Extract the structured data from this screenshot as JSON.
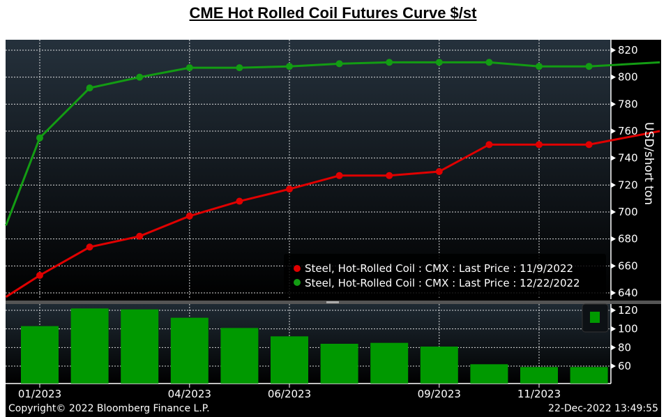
{
  "title": "CME Hot Rolled Coil Futures Curve $/st",
  "footer": {
    "copyright": "Copyright© 2022 Bloomberg Finance L.P.",
    "timestamp": "22-Dec-2022 13:49:55"
  },
  "chart_data": [
    {
      "type": "line",
      "ylabel": "USD/short ton",
      "ylim": [
        640,
        820
      ],
      "yticks": [
        "640",
        "660",
        "680",
        "700",
        "720",
        "740",
        "760",
        "780",
        "800",
        "820"
      ],
      "xticks": [
        "01/2023",
        "04/2023",
        "06/2023",
        "09/2023",
        "11/2023"
      ],
      "grid": true,
      "legend_placement": "bottom-right",
      "colors": {
        "red": "#e00000",
        "green": "#139c13"
      },
      "series": [
        {
          "name": "Steel, Hot-Rolled Coil : CMX : Last Price : 11/9/2022",
          "color": "#e00000",
          "x": [
            "2022-12-11",
            "2023-01",
            "2023-02",
            "2023-03",
            "2023-04",
            "2023-05",
            "2023-06",
            "2023-07",
            "2023-08",
            "2023-09",
            "2023-10",
            "2023-11",
            "2023-12",
            "2024-01-14"
          ],
          "y": [
            637,
            653,
            674,
            682,
            697,
            708,
            717,
            727,
            727,
            730,
            750,
            750,
            750,
            760
          ]
        },
        {
          "name": "Steel, Hot-Rolled Coil : CMX : Last Price : 12/22/2022",
          "color": "#139c13",
          "x": [
            "2022-12-11",
            "2023-01",
            "2023-02",
            "2023-03",
            "2023-04",
            "2023-05",
            "2023-06",
            "2023-07",
            "2023-08",
            "2023-09",
            "2023-10",
            "2023-11",
            "2023-12",
            "2024-01-14"
          ],
          "y": [
            690,
            755,
            792,
            800,
            807,
            807,
            808,
            810,
            811,
            811,
            811,
            808,
            808,
            811
          ]
        }
      ]
    },
    {
      "type": "bar",
      "ylim": [
        45,
        125
      ],
      "yticks": [
        "60",
        "80",
        "100",
        "120"
      ],
      "color": "#009900",
      "categories": [
        "2023-01",
        "2023-02",
        "2023-03",
        "2023-04",
        "2023-05",
        "2023-06",
        "2023-07",
        "2023-08",
        "2023-09",
        "2023-10",
        "2023-11",
        "2023-12"
      ],
      "values": [
        103,
        122,
        121,
        112,
        101,
        92,
        84,
        85,
        81,
        62,
        59,
        59
      ]
    }
  ]
}
